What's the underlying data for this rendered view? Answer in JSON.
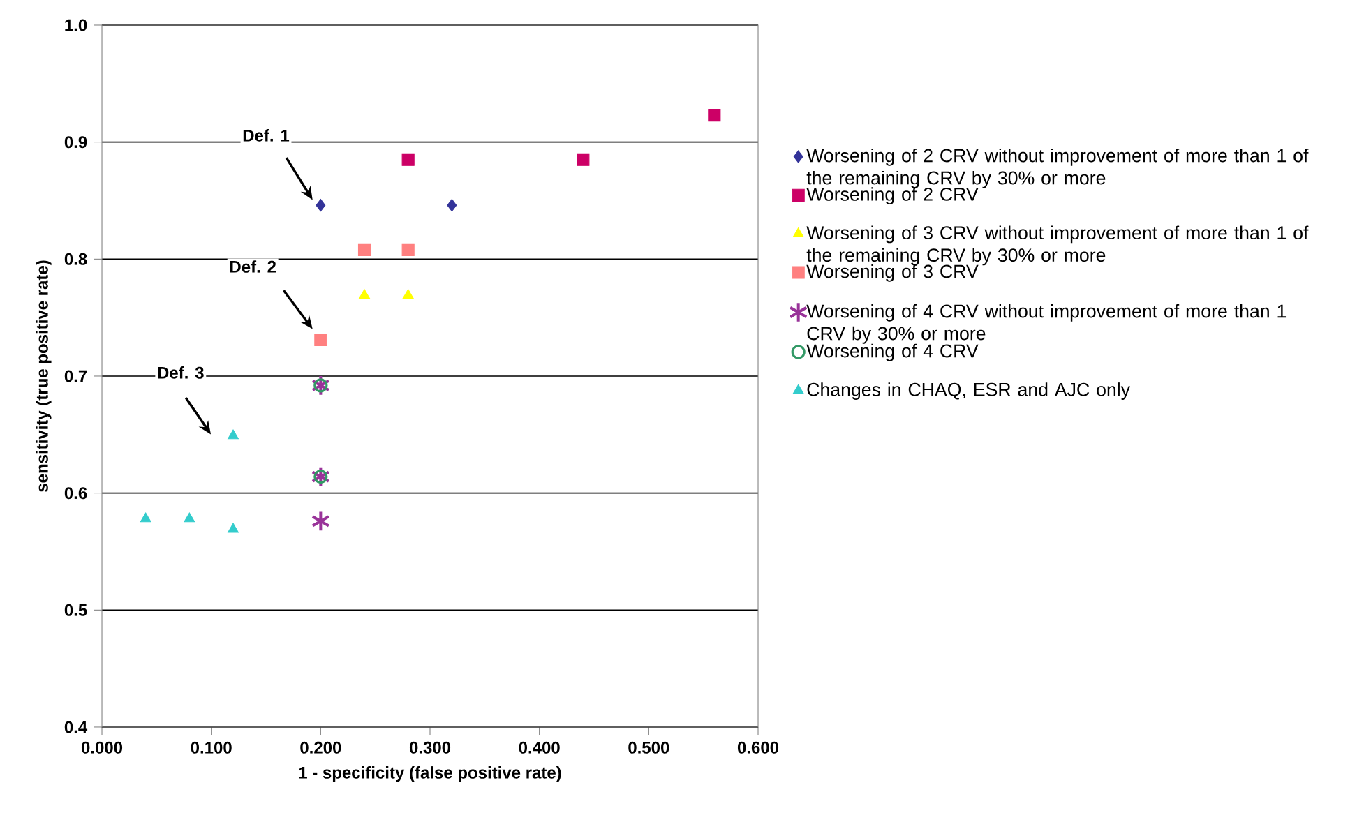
{
  "chart_data": {
    "type": "scatter",
    "xlabel": "1 - specificity (false positive rate)",
    "ylabel": "sensitivity (true positive rate)",
    "xlim": [
      0,
      0.6
    ],
    "ylim": [
      0.4,
      1.0
    ],
    "xticks": [
      {
        "value": 0,
        "label": "0.000"
      },
      {
        "value": 0.1,
        "label": "0.100"
      },
      {
        "value": 0.2,
        "label": "0.200"
      },
      {
        "value": 0.3,
        "label": "0.300"
      },
      {
        "value": 0.4,
        "label": "0.400"
      },
      {
        "value": 0.5,
        "label": "0.500"
      },
      {
        "value": 0.6,
        "label": "0.600"
      }
    ],
    "yticks": [
      {
        "value": 0.4,
        "label": "0.4"
      },
      {
        "value": 0.5,
        "label": "0.5"
      },
      {
        "value": 0.6,
        "label": "0.6"
      },
      {
        "value": 0.7,
        "label": "0.7"
      },
      {
        "value": 0.8,
        "label": "0.8"
      },
      {
        "value": 0.9,
        "label": "0.9"
      },
      {
        "value": 1.0,
        "label": "1.0"
      }
    ],
    "grid": "y",
    "legend": "right",
    "series": [
      {
        "name": "Worsening of 2 CRV   without improvement of more than 1 of the remaining CRV   by 30% or more",
        "color": "#333399",
        "marker": "diamond",
        "x": [
          0.2,
          0.32
        ],
        "values": [
          0.846,
          0.846
        ]
      },
      {
        "name": "Worsening of 2 CRV",
        "color": "#cc0066",
        "marker": "square",
        "x": [
          0.28,
          0.44,
          0.56
        ],
        "values": [
          0.885,
          0.885,
          0.923
        ]
      },
      {
        "name": "Worsening of 3 CRV   without improvement of more than 1 of the remaining CRV   by 30% or more",
        "color": "#ffff00",
        "marker": "triangle",
        "x": [
          0.24,
          0.28
        ],
        "values": [
          0.769,
          0.769
        ]
      },
      {
        "name": "Worsening of 3 CRV",
        "color": "#ff8080",
        "marker": "square",
        "x": [
          0.2,
          0.24,
          0.28
        ],
        "values": [
          0.731,
          0.808,
          0.808
        ]
      },
      {
        "name": "Worsening of 4 CRV   without improvement of more than 1 CRV   by 30% or more",
        "color": "#993399",
        "marker": "cross",
        "x": [
          0.2,
          0.2,
          0.2
        ],
        "values": [
          0.692,
          0.614,
          0.576
        ]
      },
      {
        "name": "Worsening of 4 CRV",
        "color": "#339966",
        "marker": "circle",
        "x": [
          0.2,
          0.2
        ],
        "values": [
          0.692,
          0.614
        ]
      },
      {
        "name": "Changes in CHAQ, ESR and AJC only",
        "color": "#33cccc",
        "marker": "triangle",
        "x": [
          0.04,
          0.08,
          0.12,
          0.12
        ],
        "values": [
          0.578,
          0.578,
          0.569,
          0.649
        ]
      }
    ],
    "annotations": [
      "Def. 1",
      "Def. 2",
      "Def. 3"
    ]
  }
}
